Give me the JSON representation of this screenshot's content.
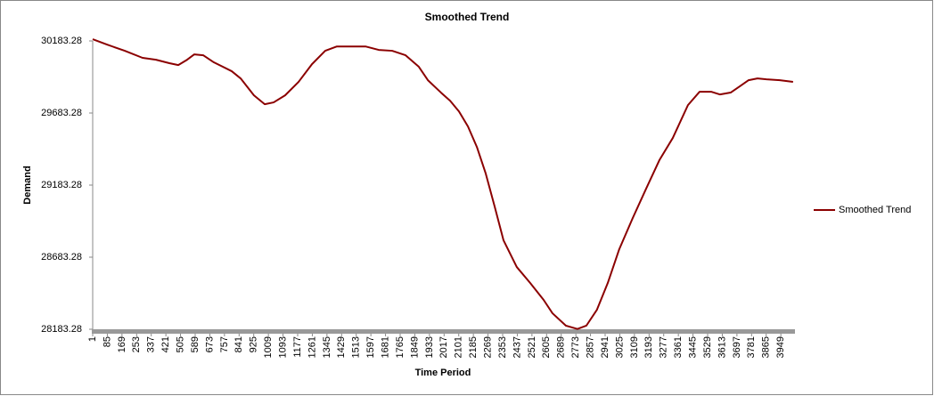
{
  "chart_data": {
    "type": "line",
    "title": "Smoothed Trend",
    "x_label": "Time Period",
    "y_label": "Demand",
    "x": [
      1,
      83,
      185,
      287,
      364,
      441,
      492,
      543,
      584,
      635,
      696,
      799,
      850,
      926,
      988,
      1039,
      1105,
      1182,
      1259,
      1335,
      1402,
      1489,
      1566,
      1642,
      1719,
      1796,
      1872,
      1924,
      2000,
      2051,
      2102,
      2154,
      2205,
      2256,
      2307,
      2358,
      2434,
      2511,
      2588,
      2639,
      2716,
      2782,
      2833,
      2894,
      2956,
      3022,
      3099,
      3176,
      3252,
      3329,
      3416,
      3483,
      3549,
      3600,
      3661,
      3713,
      3764,
      3815,
      3866,
      3943,
      4019
    ],
    "series": [
      {
        "name": "Smoothed Trend",
        "color": "#8b0000",
        "values": [
          30195,
          30158,
          30115,
          30066,
          30053,
          30029,
          30016,
          30053,
          30090,
          30084,
          30035,
          29973,
          29923,
          29806,
          29744,
          29757,
          29806,
          29899,
          30022,
          30115,
          30145,
          30145,
          30145,
          30121,
          30115,
          30084,
          30004,
          29911,
          29824,
          29769,
          29695,
          29590,
          29448,
          29263,
          29035,
          28800,
          28615,
          28504,
          28387,
          28294,
          28208,
          28185,
          28208,
          28319,
          28504,
          28739,
          28954,
          29158,
          29356,
          29510,
          29738,
          29831,
          29831,
          29812,
          29825,
          29868,
          29911,
          29923,
          29917,
          29911,
          29899
        ]
      }
    ],
    "xlim": [
      1,
      4030
    ],
    "xticks": [
      1,
      85,
      169,
      253,
      337,
      421,
      505,
      589,
      673,
      757,
      841,
      925,
      1009,
      1093,
      1177,
      1261,
      1345,
      1429,
      1513,
      1597,
      1681,
      1765,
      1849,
      1933,
      2017,
      2101,
      2185,
      2269,
      2353,
      2437,
      2521,
      2605,
      2689,
      2773,
      2857,
      2941,
      3025,
      3109,
      3193,
      3277,
      3361,
      3445,
      3529,
      3613,
      3697,
      3781,
      3865,
      3949
    ],
    "ylim": [
      28183.28,
      30183.28
    ],
    "yticks": [
      28183.28,
      28683.28,
      29183.28,
      29683.28,
      30183.28
    ],
    "grid": false,
    "legend": "right"
  }
}
